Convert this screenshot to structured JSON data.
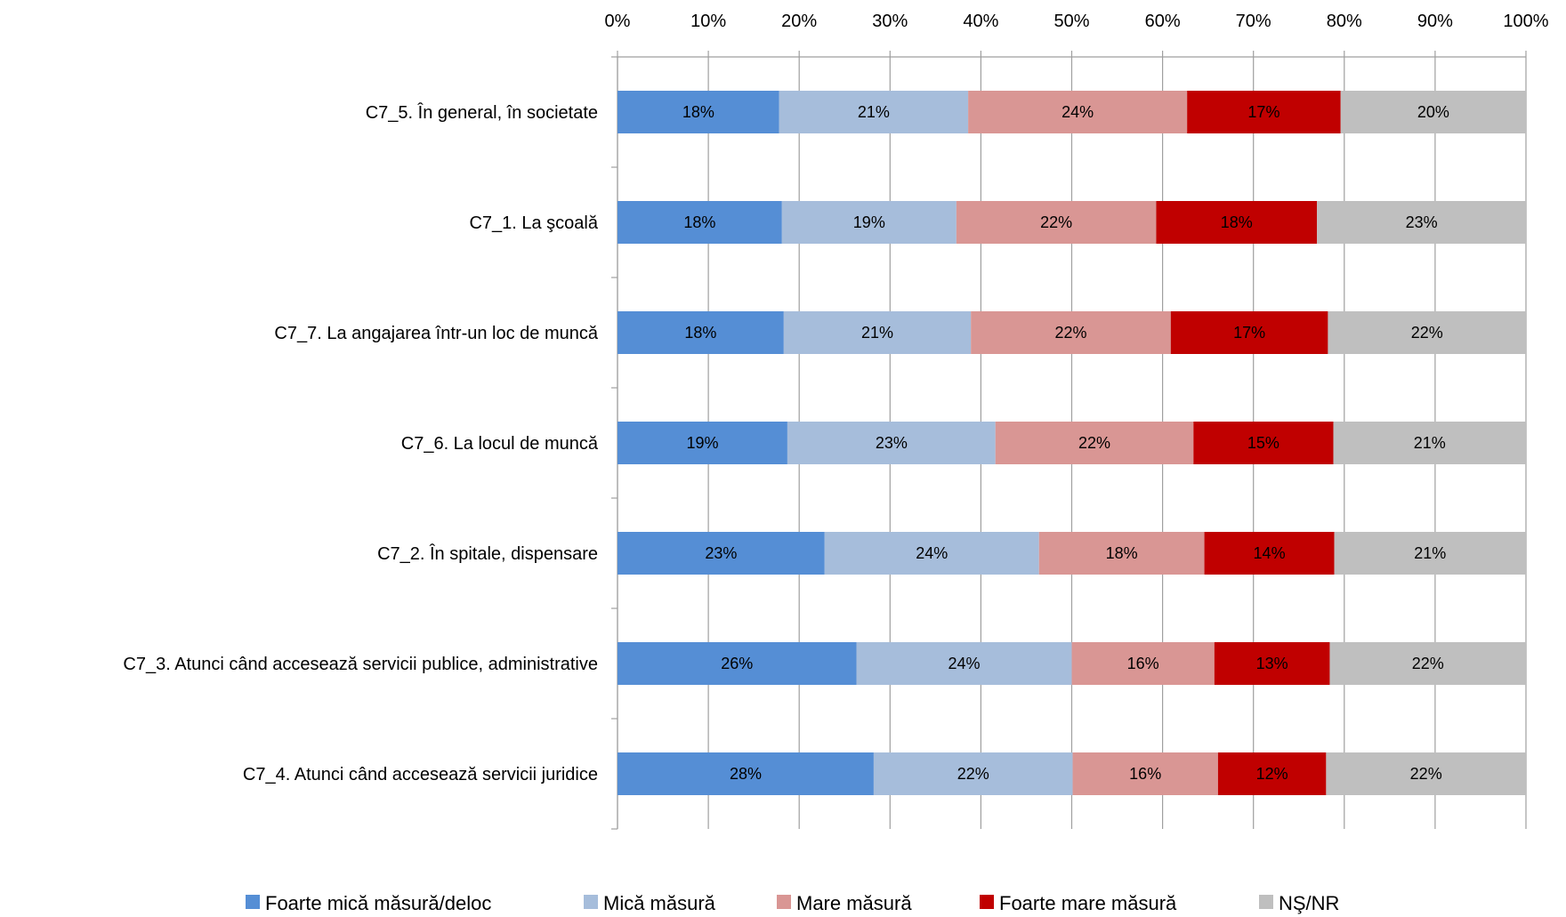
{
  "chart_data": {
    "type": "bar",
    "orientation": "horizontal",
    "stacked": true,
    "xlim": [
      0,
      100
    ],
    "x_ticks": [
      "0%",
      "10%",
      "20%",
      "30%",
      "40%",
      "50%",
      "60%",
      "70%",
      "80%",
      "90%",
      "100%"
    ],
    "x_axis_position": "top",
    "grid": true,
    "legend_position": "bottom",
    "categories": [
      "C7_5. În general, în societate",
      "C7_1. La şcoală",
      "C7_7. La angajarea într-un loc de muncă",
      "C7_6. La locul de muncă",
      "C7_2. În spitale, dispensare",
      "C7_3. Atunci când accesează servicii publice, administrative",
      "C7_4. Atunci când accesează servicii juridice"
    ],
    "series": [
      {
        "name": "Foarte mică măsură/deloc",
        "color": "#558ED5",
        "values": [
          17.8,
          18.1,
          18.3,
          18.7,
          22.8,
          26.3,
          28.2
        ],
        "labels": [
          "18%",
          "18%",
          "18%",
          "19%",
          "23%",
          "26%",
          "28%"
        ]
      },
      {
        "name": "Mică măsură",
        "color": "#A6BDDB",
        "values": [
          20.8,
          19.2,
          20.6,
          22.9,
          23.6,
          23.7,
          21.9
        ],
        "labels": [
          "21%",
          "19%",
          "21%",
          "23%",
          "24%",
          "24%",
          "22%"
        ]
      },
      {
        "name": "Mare măsură",
        "color": "#D99694",
        "values": [
          24.1,
          22.0,
          22.0,
          21.8,
          18.2,
          15.7,
          16.0
        ],
        "labels": [
          "24%",
          "22%",
          "22%",
          "22%",
          "18%",
          "16%",
          "16%"
        ]
      },
      {
        "name": "Foarte mare măsură",
        "color": "#C00000",
        "values": [
          16.9,
          17.7,
          17.3,
          15.4,
          14.3,
          12.7,
          11.9
        ],
        "labels": [
          "17%",
          "18%",
          "17%",
          "15%",
          "14%",
          "13%",
          "12%"
        ]
      },
      {
        "name": "NŞ/NR",
        "color": "#BFBFBF",
        "values": [
          20.4,
          23.0,
          21.8,
          21.2,
          21.1,
          21.6,
          22.0
        ],
        "labels": [
          "20%",
          "23%",
          "22%",
          "21%",
          "21%",
          "22%",
          "22%"
        ]
      }
    ]
  }
}
